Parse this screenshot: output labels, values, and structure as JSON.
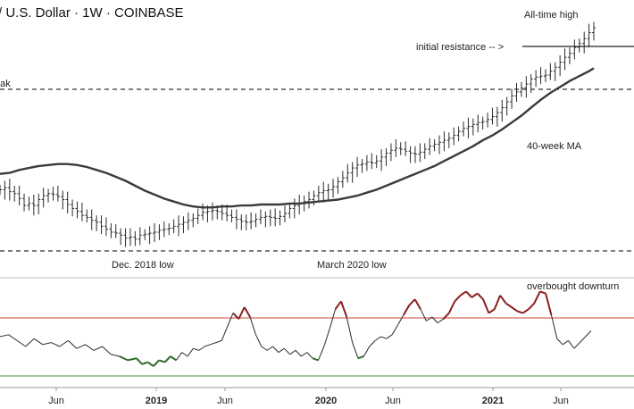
{
  "chart_data": {
    "title": "/ U.S. Dollar · 1W · COINBASE",
    "type": "ohlc_weekly_with_indicator",
    "price_panel": {
      "ohlc_close_path": [
        [
          0,
          62
        ],
        [
          4,
          64
        ],
        [
          8,
          60
        ],
        [
          12,
          58
        ],
        [
          16,
          53
        ],
        [
          20,
          46
        ],
        [
          24,
          48
        ],
        [
          28,
          46
        ],
        [
          32,
          52
        ],
        [
          36,
          56
        ],
        [
          40,
          58
        ],
        [
          44,
          57
        ],
        [
          48,
          55
        ],
        [
          52,
          52
        ],
        [
          56,
          47
        ],
        [
          60,
          43
        ],
        [
          64,
          40
        ],
        [
          68,
          36
        ],
        [
          72,
          34
        ],
        [
          76,
          31
        ],
        [
          80,
          29
        ],
        [
          84,
          25
        ],
        [
          88,
          22
        ],
        [
          92,
          19
        ],
        [
          96,
          18
        ],
        [
          100,
          16
        ],
        [
          104,
          13
        ],
        [
          108,
          14
        ],
        [
          112,
          12
        ],
        [
          116,
          16
        ],
        [
          120,
          17
        ],
        [
          124,
          18
        ],
        [
          128,
          19
        ],
        [
          132,
          21
        ],
        [
          136,
          22
        ],
        [
          140,
          23
        ],
        [
          144,
          25
        ],
        [
          148,
          27
        ],
        [
          152,
          29
        ],
        [
          156,
          31
        ],
        [
          160,
          33
        ],
        [
          164,
          36
        ],
        [
          168,
          39
        ],
        [
          172,
          40
        ],
        [
          176,
          41
        ],
        [
          180,
          40
        ],
        [
          184,
          38
        ],
        [
          188,
          36
        ],
        [
          192,
          34
        ],
        [
          196,
          32
        ],
        [
          200,
          30
        ],
        [
          204,
          29
        ],
        [
          208,
          30
        ],
        [
          212,
          32
        ],
        [
          216,
          34
        ],
        [
          220,
          35
        ],
        [
          224,
          34
        ],
        [
          228,
          33
        ],
        [
          232,
          35
        ],
        [
          236,
          38
        ],
        [
          240,
          43
        ],
        [
          244,
          46
        ],
        [
          248,
          48
        ],
        [
          252,
          50
        ],
        [
          256,
          52
        ],
        [
          260,
          56
        ],
        [
          264,
          59
        ],
        [
          268,
          61
        ],
        [
          272,
          62
        ],
        [
          276,
          65
        ],
        [
          280,
          70
        ],
        [
          284,
          74
        ],
        [
          288,
          79
        ],
        [
          292,
          84
        ],
        [
          296,
          87
        ],
        [
          300,
          88
        ],
        [
          304,
          90
        ],
        [
          308,
          89
        ],
        [
          312,
          91
        ],
        [
          316,
          95
        ],
        [
          320,
          99
        ],
        [
          324,
          102
        ],
        [
          328,
          104
        ],
        [
          332,
          103
        ],
        [
          336,
          101
        ],
        [
          340,
          99
        ],
        [
          344,
          98
        ],
        [
          348,
          100
        ],
        [
          352,
          103
        ],
        [
          356,
          106
        ],
        [
          360,
          108
        ],
        [
          364,
          110
        ],
        [
          368,
          112
        ],
        [
          372,
          114
        ],
        [
          376,
          117
        ],
        [
          380,
          121
        ],
        [
          384,
          124
        ],
        [
          388,
          126
        ],
        [
          392,
          128
        ],
        [
          396,
          130
        ],
        [
          400,
          131
        ],
        [
          404,
          133
        ],
        [
          408,
          136
        ],
        [
          412,
          140
        ],
        [
          416,
          145
        ],
        [
          420,
          151
        ],
        [
          424,
          157
        ],
        [
          428,
          161
        ],
        [
          432,
          165
        ],
        [
          436,
          169
        ],
        [
          440,
          174
        ],
        [
          444,
          176
        ],
        [
          448,
          177
        ],
        [
          452,
          178
        ],
        [
          456,
          182
        ],
        [
          460,
          186
        ],
        [
          464,
          191
        ],
        [
          468,
          196
        ],
        [
          472,
          200
        ],
        [
          476,
          206
        ],
        [
          480,
          210
        ],
        [
          484,
          215
        ],
        [
          488,
          221
        ],
        [
          492,
          226
        ]
      ],
      "ma_40_week_path": [
        [
          0,
          78
        ],
        [
          8,
          79
        ],
        [
          16,
          82
        ],
        [
          24,
          84
        ],
        [
          32,
          86
        ],
        [
          40,
          87
        ],
        [
          48,
          88
        ],
        [
          56,
          88
        ],
        [
          64,
          87
        ],
        [
          72,
          85
        ],
        [
          80,
          82
        ],
        [
          88,
          79
        ],
        [
          96,
          75
        ],
        [
          104,
          71
        ],
        [
          112,
          66
        ],
        [
          120,
          61
        ],
        [
          128,
          57
        ],
        [
          136,
          53
        ],
        [
          144,
          50
        ],
        [
          152,
          47
        ],
        [
          160,
          45
        ],
        [
          168,
          44
        ],
        [
          176,
          44
        ],
        [
          184,
          45
        ],
        [
          192,
          45
        ],
        [
          200,
          46
        ],
        [
          208,
          46
        ],
        [
          216,
          47
        ],
        [
          224,
          47
        ],
        [
          232,
          47
        ],
        [
          240,
          48
        ],
        [
          248,
          48
        ],
        [
          256,
          49
        ],
        [
          264,
          50
        ],
        [
          272,
          51
        ],
        [
          280,
          52
        ],
        [
          288,
          54
        ],
        [
          296,
          56
        ],
        [
          304,
          59
        ],
        [
          312,
          62
        ],
        [
          320,
          66
        ],
        [
          328,
          70
        ],
        [
          336,
          74
        ],
        [
          344,
          78
        ],
        [
          352,
          82
        ],
        [
          360,
          86
        ],
        [
          368,
          91
        ],
        [
          376,
          96
        ],
        [
          384,
          101
        ],
        [
          392,
          106
        ],
        [
          400,
          112
        ],
        [
          408,
          117
        ],
        [
          416,
          123
        ],
        [
          424,
          130
        ],
        [
          432,
          137
        ],
        [
          440,
          145
        ],
        [
          448,
          153
        ],
        [
          456,
          160
        ],
        [
          464,
          166
        ],
        [
          472,
          172
        ],
        [
          480,
          177
        ],
        [
          488,
          182
        ],
        [
          492,
          185
        ]
      ],
      "all_time_high_y": 226,
      "initial_resistance_y": 205,
      "upper_dashed_line_y": 150,
      "lower_dashed_line_y": 10
    },
    "annotations": {
      "all_time_high": "All-time high",
      "initial_resistance": "initial resistance -- >",
      "ma_label": "40-week MA",
      "dec_2018_low": "Dec. 2018 low",
      "march_2020_low": "March 2020 low",
      "left_cut_label": "eak",
      "overbought": "overbought downturn"
    },
    "indicator_panel": {
      "series": [
        [
          0,
          50
        ],
        [
          6,
          52
        ],
        [
          12,
          46
        ],
        [
          18,
          40
        ],
        [
          24,
          48
        ],
        [
          30,
          42
        ],
        [
          36,
          44
        ],
        [
          42,
          40
        ],
        [
          48,
          46
        ],
        [
          54,
          38
        ],
        [
          60,
          42
        ],
        [
          66,
          36
        ],
        [
          72,
          40
        ],
        [
          78,
          32
        ],
        [
          84,
          30
        ],
        [
          90,
          26
        ],
        [
          96,
          28
        ],
        [
          100,
          22
        ],
        [
          104,
          24
        ],
        [
          108,
          20
        ],
        [
          112,
          26
        ],
        [
          116,
          24
        ],
        [
          120,
          30
        ],
        [
          124,
          26
        ],
        [
          128,
          34
        ],
        [
          132,
          30
        ],
        [
          136,
          38
        ],
        [
          140,
          36
        ],
        [
          144,
          40
        ],
        [
          148,
          42
        ],
        [
          152,
          44
        ],
        [
          156,
          46
        ],
        [
          160,
          60
        ],
        [
          164,
          74
        ],
        [
          168,
          68
        ],
        [
          172,
          80
        ],
        [
          176,
          70
        ],
        [
          180,
          52
        ],
        [
          184,
          40
        ],
        [
          188,
          36
        ],
        [
          192,
          40
        ],
        [
          196,
          34
        ],
        [
          200,
          38
        ],
        [
          204,
          32
        ],
        [
          208,
          36
        ],
        [
          212,
          30
        ],
        [
          216,
          34
        ],
        [
          220,
          28
        ],
        [
          224,
          26
        ],
        [
          228,
          40
        ],
        [
          232,
          58
        ],
        [
          236,
          78
        ],
        [
          240,
          86
        ],
        [
          244,
          70
        ],
        [
          248,
          44
        ],
        [
          252,
          28
        ],
        [
          256,
          30
        ],
        [
          260,
          40
        ],
        [
          264,
          46
        ],
        [
          268,
          50
        ],
        [
          272,
          48
        ],
        [
          276,
          52
        ],
        [
          280,
          62
        ],
        [
          284,
          72
        ],
        [
          288,
          82
        ],
        [
          292,
          88
        ],
        [
          296,
          78
        ],
        [
          300,
          66
        ],
        [
          304,
          70
        ],
        [
          308,
          64
        ],
        [
          312,
          68
        ],
        [
          316,
          74
        ],
        [
          320,
          86
        ],
        [
          324,
          92
        ],
        [
          328,
          96
        ],
        [
          332,
          90
        ],
        [
          336,
          94
        ],
        [
          340,
          88
        ],
        [
          344,
          74
        ],
        [
          348,
          78
        ],
        [
          352,
          92
        ],
        [
          356,
          84
        ],
        [
          360,
          80
        ],
        [
          364,
          76
        ],
        [
          368,
          74
        ],
        [
          372,
          78
        ],
        [
          376,
          84
        ],
        [
          380,
          96
        ],
        [
          384,
          94
        ],
        [
          388,
          72
        ],
        [
          392,
          48
        ],
        [
          396,
          42
        ],
        [
          400,
          46
        ],
        [
          404,
          38
        ],
        [
          408,
          44
        ],
        [
          412,
          50
        ],
        [
          416,
          56
        ]
      ],
      "overbought_level": 80,
      "oversold_level": 20
    },
    "x_axis_ticks": [
      "Jun",
      "2019",
      "Jun",
      "2020",
      "Jun",
      "2021",
      "Jun"
    ],
    "x_axis_bold_ticks": [
      "2019",
      "2020",
      "2021"
    ]
  },
  "colors": {
    "price": "#2a2a2a",
    "ma": "#3a3a3a",
    "upper_band": "#d66a5a",
    "lower_band": "#68a75f",
    "overbought_segment": "#8b1d1d",
    "oversold_segment": "#2f6b2a",
    "dash": "#333333"
  }
}
